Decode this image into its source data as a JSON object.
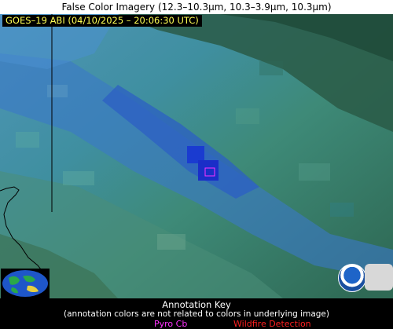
{
  "title": "False Color Imagery (12.3–10.3µm, 10.3–3.9µm, 10.3µm)",
  "satellite_label": "GOES–19 ABI (04/10/2025 – 20:06:30 UTC)",
  "annotation_key": {
    "title": "Annotation Key",
    "note": "(annotation colors are not related to colors in underlying image)",
    "legend": [
      {
        "label": "Pyro Cb",
        "color": "#ff33ff"
      },
      {
        "label": "Wildfire Detection",
        "color": "#ff2020"
      }
    ]
  },
  "colors": {
    "background": "#3c7f87",
    "teal": "#4a9a93",
    "blue": "#2c63c7",
    "dark_green": "#1e4e3c",
    "label_text": "#ffff55",
    "detection_box": "#ff33ff"
  },
  "icons": [
    "globe-icon",
    "noaa-logo",
    "cimss-logo"
  ]
}
